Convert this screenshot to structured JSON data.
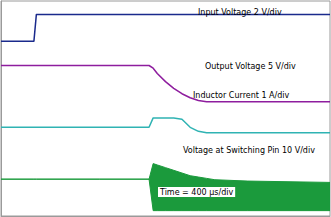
{
  "chart_data": {
    "type": "line",
    "x": [
      0,
      400,
      430,
      1200,
      1800,
      1850,
      1900,
      2000,
      2100,
      2200,
      2300,
      2400,
      2500,
      2600,
      3000,
      4000
    ],
    "series": [
      {
        "name": "Input Voltage 2 V/div",
        "color": "#1a2a8c",
        "values": [
          6.5,
          6.5,
          7.5,
          7.5,
          7.5,
          7.5,
          7.5,
          7.5,
          7.5,
          7.5,
          7.5,
          7.5,
          7.5,
          7.5,
          7.5,
          7.5
        ]
      },
      {
        "name": "Output Voltage 5 V/div",
        "color": "#8e1d9e",
        "values": [
          5.6,
          5.6,
          5.6,
          5.6,
          5.6,
          5.5,
          5.3,
          5.0,
          4.75,
          4.55,
          4.4,
          4.3,
          4.25,
          4.25,
          4.25,
          4.25
        ]
      },
      {
        "name": "Inductor Current 1 A/div",
        "color": "#2fb3b3",
        "values": [
          3.3,
          3.3,
          3.3,
          3.3,
          3.3,
          3.65,
          3.65,
          3.65,
          3.65,
          3.6,
          3.3,
          3.15,
          3.1,
          3.1,
          3.1,
          3.1
        ]
      },
      {
        "name": "Voltage at Switching Pin 10 V/div",
        "color": "#1b9a3c",
        "type": "band",
        "values": [
          1.37,
          1.37,
          1.37,
          1.37,
          1.37,
          1.95,
          1.9,
          1.8,
          1.7,
          1.6,
          1.5,
          1.45,
          1.4,
          1.35,
          1.3,
          1.25
        ],
        "low": [
          1.37,
          1.37,
          1.37,
          1.37,
          1.37,
          0.2,
          0.2,
          0.2,
          0.2,
          0.2,
          0.2,
          0.2,
          0.2,
          0.2,
          0.2,
          0.2
        ]
      }
    ],
    "annotations": [
      "Time = 400 µs/div"
    ],
    "xlim": [
      0,
      4000
    ],
    "ylim": [
      0,
      8
    ],
    "grid": false,
    "tick_labels": false,
    "legend": "none"
  }
}
